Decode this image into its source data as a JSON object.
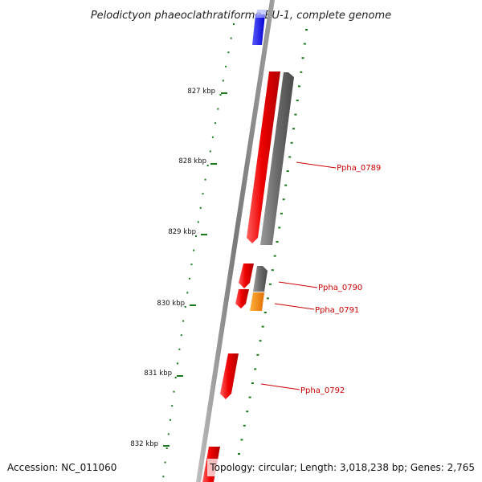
{
  "title": "Pelodictyon phaeoclathratiforme BU-1, complete genome",
  "footer": {
    "accession": "Accession: NC_011060",
    "topology": "Topology: circular; Length: 3,018,238 bp; Genes: 2,765"
  },
  "colors": {
    "forward_gene": "#e00000",
    "reverse_gene": "#666666",
    "rna_gene": "#f08000",
    "other_gene": "#1a1ae6",
    "tick": "#1a7a1a",
    "backbone": "#888888",
    "label": "#cc0000"
  },
  "axis_labels": [
    "827 kbp",
    "828 kbp",
    "829 kbp",
    "830 kbp",
    "831 kbp",
    "832 kbp"
  ],
  "gene_labels": [
    "Ppha_0789",
    "Ppha_0790",
    "Ppha_0791",
    "Ppha_0792"
  ]
}
